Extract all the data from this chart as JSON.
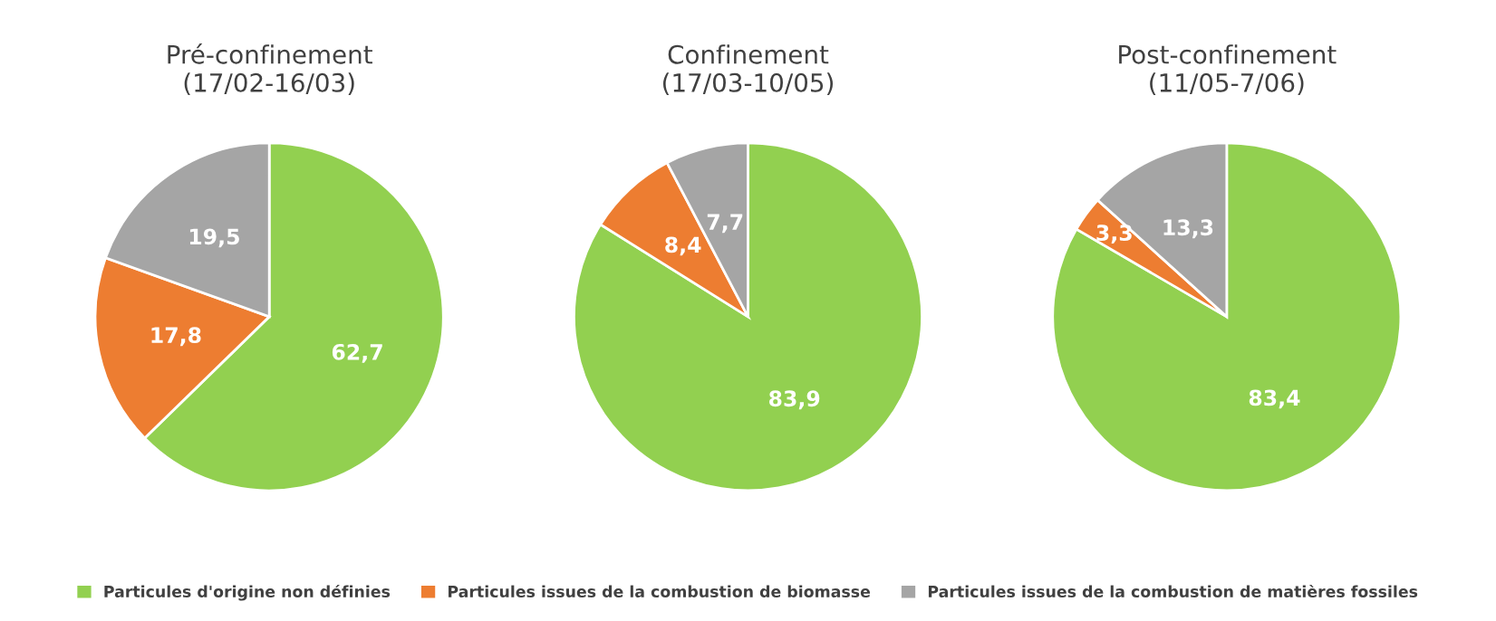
{
  "chart_data": [
    {
      "type": "pie",
      "title": "Pré-confinement\n(17/02-16/03)",
      "categories": [
        "Particules d'origine non définies",
        "Particules issues de la combustion de biomasse",
        "Particules issues de la combustion de matières fossiles"
      ],
      "values": [
        62.7,
        17.8,
        19.5
      ],
      "colors": [
        "#92d050",
        "#ed7d31",
        "#a5a5a5"
      ],
      "value_labels": [
        "62,7",
        "17,8",
        "19,5"
      ],
      "legend": "bottom"
    },
    {
      "type": "pie",
      "title": "Confinement\n(17/03-10/05)",
      "categories": [
        null,
        null,
        null
      ],
      "values": [
        83.9,
        8.4,
        7.7
      ],
      "colors": [
        "#92d050",
        "#ed7d31",
        "#a5a5a5"
      ],
      "value_labels": [
        "83,9",
        "8,4",
        "7,7"
      ]
    },
    {
      "type": "pie",
      "title": "Post-confinement\n(11/05-7/06)",
      "categories": [
        null,
        null,
        null
      ],
      "values": [
        83.4,
        3.3,
        13.3
      ],
      "colors": [
        "#92d050",
        "#ed7d31",
        "#a5a5a5"
      ],
      "value_labels": [
        "83,4",
        "3,3",
        "13,3"
      ]
    }
  ]
}
